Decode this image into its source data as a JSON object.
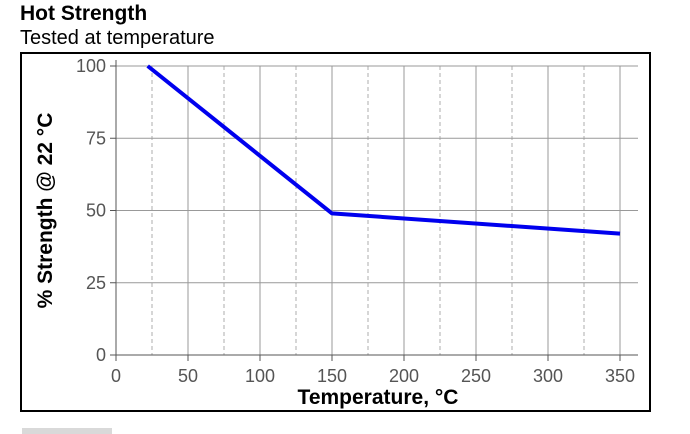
{
  "chart_data": {
    "type": "line",
    "title": "Hot Strength",
    "subtitle": "Tested at temperature",
    "xlabel": "Temperature, °C",
    "ylabel": "% Strength @ 22 °C",
    "xlim": [
      0,
      350
    ],
    "ylim": [
      0,
      100
    ],
    "xticks": [
      0,
      50,
      100,
      150,
      200,
      250,
      300,
      350
    ],
    "yticks": [
      0,
      25,
      50,
      75,
      100
    ],
    "x_minor_gridlines": [
      25,
      75,
      125,
      175,
      225,
      275,
      325
    ],
    "grid": true,
    "legend": "none",
    "series": [
      {
        "x": [
          22,
          150,
          350
        ],
        "y": [
          100,
          49,
          42
        ],
        "color": "#0000ee"
      }
    ]
  },
  "colors": {
    "line": "#0000ee",
    "grid": "#999999",
    "axis": "#555555",
    "frame": "#000000"
  }
}
